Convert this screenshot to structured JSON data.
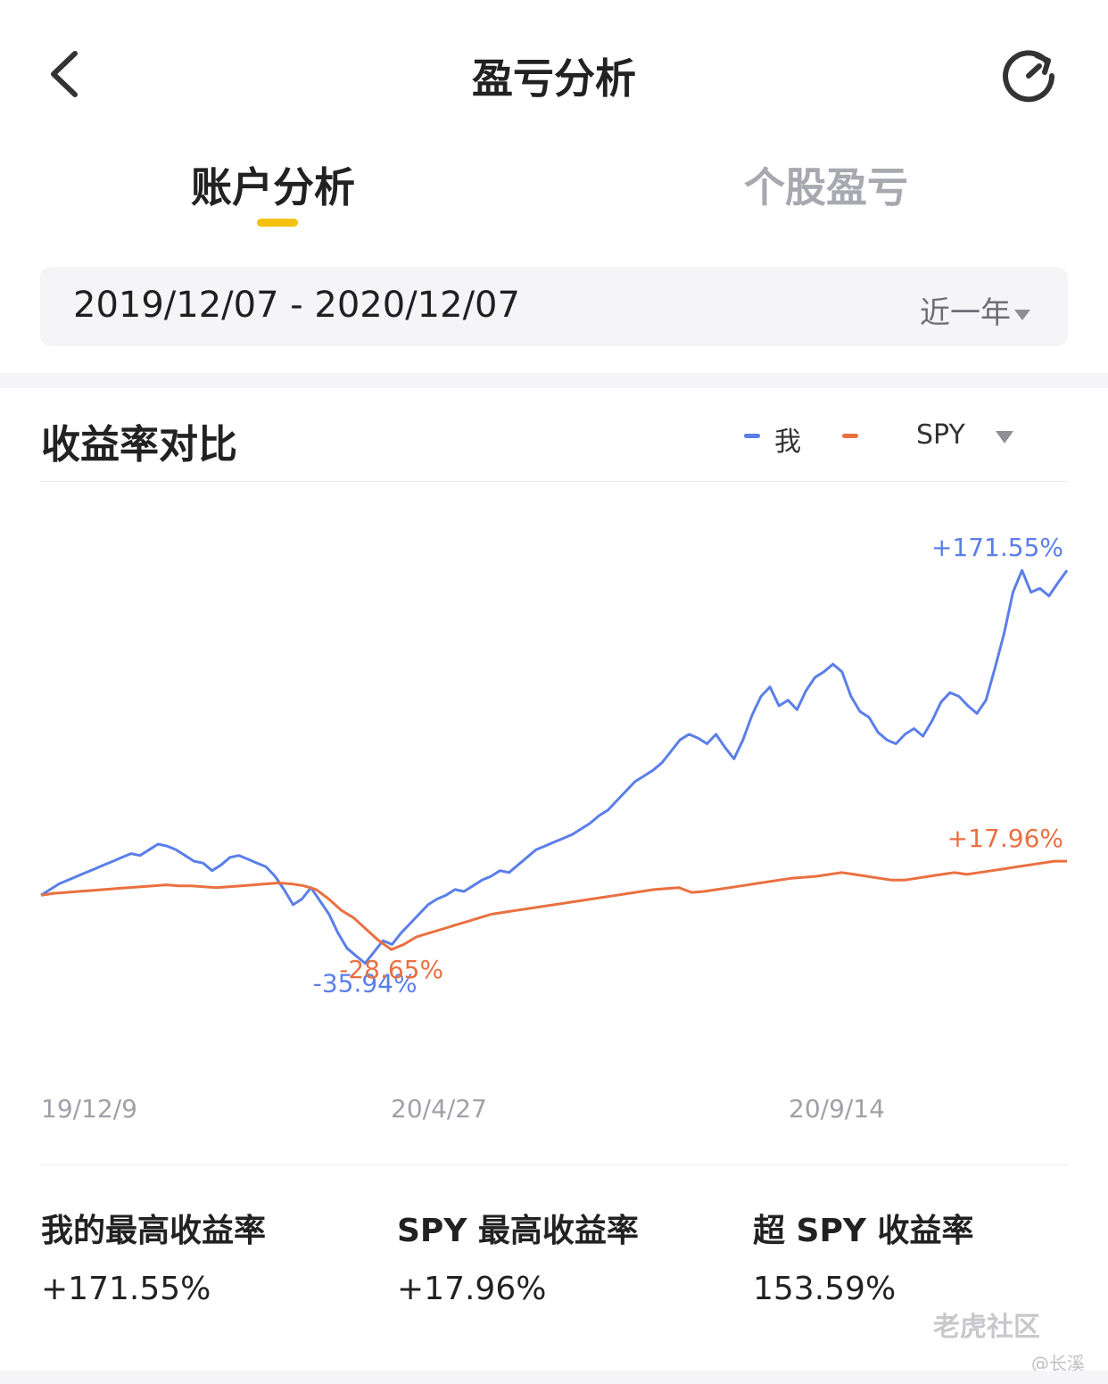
{
  "header": {
    "title": "盈亏分析",
    "back_icon": "chevron-left-icon",
    "refresh_icon": "refresh-icon"
  },
  "tabs": [
    {
      "label": "账户分析",
      "active": true
    },
    {
      "label": "个股盈亏",
      "active": false
    }
  ],
  "accent_color": "#f4c20d",
  "date_filter": {
    "range": "2019/12/07 - 2020/12/07",
    "period": "近一年"
  },
  "chart_section": {
    "title": "收益率对比",
    "legend": [
      {
        "label": "我",
        "color": "#5b7fe8"
      },
      {
        "label": "SPY",
        "color": "#ea7040"
      }
    ]
  },
  "chart_data": {
    "type": "line",
    "title": "收益率对比",
    "x_ticks": [
      "19/12/9",
      "20/4/27",
      "20/9/14"
    ],
    "ylim": [
      -55,
      190
    ],
    "grid": false,
    "legend_position": "top-right",
    "series": [
      {
        "name": "我",
        "color": "#5b7fe8",
        "values": [
          0,
          3,
          6,
          8,
          10,
          12,
          14,
          16,
          18,
          20,
          22,
          21,
          24,
          27,
          26,
          24,
          21,
          18,
          17,
          13,
          16,
          20,
          21,
          19,
          17,
          15,
          10,
          3,
          -5,
          -2,
          4,
          -3,
          -10,
          -20,
          -28,
          -32,
          -35.94,
          -30,
          -24,
          -26,
          -20,
          -15,
          -10,
          -5,
          -2,
          0,
          3,
          2,
          5,
          8,
          10,
          13,
          12,
          16,
          20,
          24,
          26,
          28,
          30,
          32,
          35,
          38,
          42,
          45,
          50,
          55,
          60,
          63,
          66,
          70,
          76,
          82,
          85,
          83,
          80,
          85,
          78,
          72,
          82,
          95,
          105,
          110,
          100,
          103,
          98,
          108,
          115,
          118,
          122,
          118,
          105,
          97,
          94,
          86,
          82,
          80,
          85,
          88,
          84,
          92,
          102,
          107,
          105,
          100,
          96,
          103,
          120,
          138,
          160,
          171.55,
          160,
          162,
          158,
          165,
          171.55
        ]
      },
      {
        "name": "SPY",
        "color": "#ea7040",
        "values": [
          0,
          1,
          1.5,
          2,
          2.5,
          3,
          3.5,
          4,
          4.5,
          5,
          5.5,
          5,
          5,
          4.5,
          4,
          4.5,
          5,
          5.5,
          6,
          6.5,
          6,
          5,
          3,
          -2,
          -8,
          -12,
          -18,
          -24,
          -28.65,
          -26,
          -22,
          -20,
          -18,
          -16,
          -14,
          -12,
          -10,
          -9,
          -8,
          -7,
          -6,
          -5,
          -4,
          -3,
          -2,
          -1,
          0,
          1,
          2,
          3,
          3.5,
          4,
          1.5,
          2,
          3,
          4,
          5,
          6,
          7,
          8,
          9,
          9.5,
          10,
          11,
          12,
          11,
          10,
          9,
          8,
          8,
          9,
          10,
          11,
          12,
          11,
          12,
          13,
          14,
          15,
          16,
          17,
          17.96,
          17.96
        ]
      }
    ],
    "annotations": [
      {
        "text": "+171.55%",
        "series": "我",
        "position": "max"
      },
      {
        "text": "-35.94%",
        "series": "我",
        "position": "min"
      },
      {
        "text": "-28.65%",
        "series": "SPY",
        "position": "min"
      },
      {
        "text": "+17.96%",
        "series": "SPY",
        "position": "end"
      }
    ]
  },
  "stats": [
    {
      "label": "我的最高收益率",
      "value": "+171.55%"
    },
    {
      "label": "SPY 最高收益率",
      "value": "+17.96%"
    },
    {
      "label": "超 SPY 收益率",
      "value": "153.59%"
    }
  ],
  "watermark": {
    "brand": "老虎社区",
    "user": "@长溪"
  }
}
